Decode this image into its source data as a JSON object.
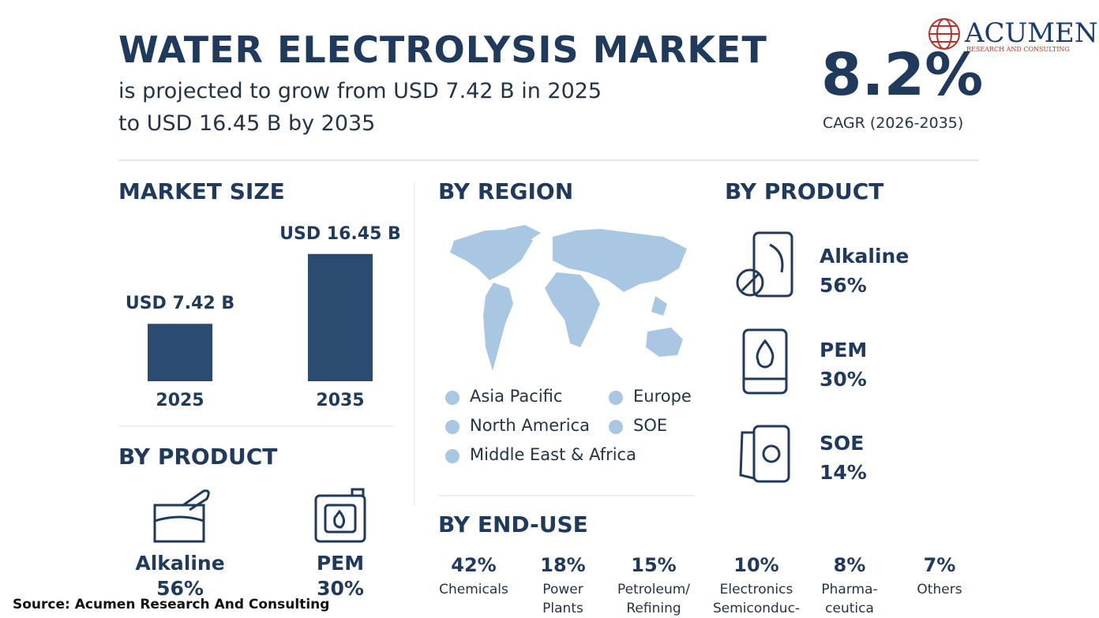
{
  "header": {
    "title": "WATER ELECTROLYSIS MARKET",
    "subtitle_lines": [
      "is projected to grow from USD 7.42 B in 2025",
      "to USD 16.45 B by 2035"
    ],
    "cagr_value": "8.2%",
    "cagr_label": "CAGR (2026-2035)"
  },
  "logo": {
    "name": "ACUMEN",
    "tagline": "RESEARCH AND CONSULTING"
  },
  "market_size": {
    "heading": "MARKET SIZE",
    "type": "bar",
    "categories": [
      "2025",
      "2035"
    ],
    "values": [
      7.42,
      16.45
    ],
    "value_labels": [
      "USD 7.42 B",
      "USD 16.45 B"
    ],
    "color": "#2b4a6f"
  },
  "region": {
    "heading": "BY REGION",
    "color": "#a9c6e3",
    "legend": [
      "Asia Pacific",
      "Europe",
      "North America",
      "SOE",
      "Middle East & Africa"
    ]
  },
  "product_right": {
    "heading": "BY PRODUCT",
    "items": [
      {
        "name": "Alkaline",
        "share": "56%"
      },
      {
        "name": "PEM",
        "share": "30%"
      },
      {
        "name": "SOE",
        "share": "14%"
      }
    ]
  },
  "product_left": {
    "heading": "BY PRODUCT",
    "items": [
      {
        "name": "Alkaline",
        "share": "56%"
      },
      {
        "name": "PEM",
        "share": "30%"
      }
    ]
  },
  "end_use": {
    "heading": "BY END-USE",
    "items": [
      {
        "share": "42%",
        "label_lines": [
          "Chemicals"
        ]
      },
      {
        "share": "18%",
        "label_lines": [
          "Power",
          "Plants"
        ]
      },
      {
        "share": "15%",
        "label_lines": [
          "Petroleum/",
          "Refining"
        ]
      },
      {
        "share": "10%",
        "label_lines": [
          "Electronics",
          "Semiconduc-"
        ]
      },
      {
        "share": "8%",
        "label_lines": [
          "Pharma-",
          "ceutica"
        ]
      },
      {
        "share": "7%",
        "label_lines": [
          "Others"
        ]
      }
    ]
  },
  "source": "Source: Acumen Research And Consulting"
}
